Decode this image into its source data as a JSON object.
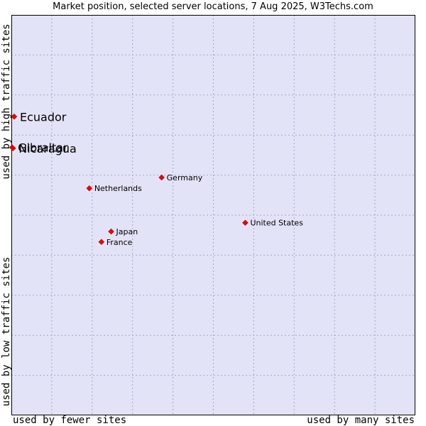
{
  "chart_data": {
    "type": "scatter",
    "title": "Market position, selected server locations, 7 Aug 2025, W3Techs.com",
    "y_label_high": "used by high traffic sites",
    "y_label_low": "used by low traffic sites",
    "x_label_low": "used by fewer sites",
    "x_label_high": "used by many sites",
    "xlim": [
      0,
      100
    ],
    "ylim": [
      0,
      100
    ],
    "grid": true,
    "plot_background": "#e3e3f7",
    "grid_color": "#a6a6c8",
    "marker_color": "#ee0000",
    "points": [
      {
        "label": "Ecuador",
        "x": 0.7,
        "y": 74.6,
        "large": true
      },
      {
        "label": "Gibraltar",
        "x": 0.2,
        "y": 66.9,
        "large": true
      },
      {
        "label": "Nicaragua",
        "x": 0.4,
        "y": 66.7,
        "large": true
      },
      {
        "label": "Germany",
        "x": 37.2,
        "y": 59.4,
        "large": false
      },
      {
        "label": "Netherlands",
        "x": 19.3,
        "y": 56.7,
        "large": false
      },
      {
        "label": "United States",
        "x": 57.9,
        "y": 48.1,
        "large": false
      },
      {
        "label": "Japan",
        "x": 24.7,
        "y": 45.9,
        "large": false
      },
      {
        "label": "France",
        "x": 22.3,
        "y": 43.3,
        "large": false
      }
    ]
  }
}
